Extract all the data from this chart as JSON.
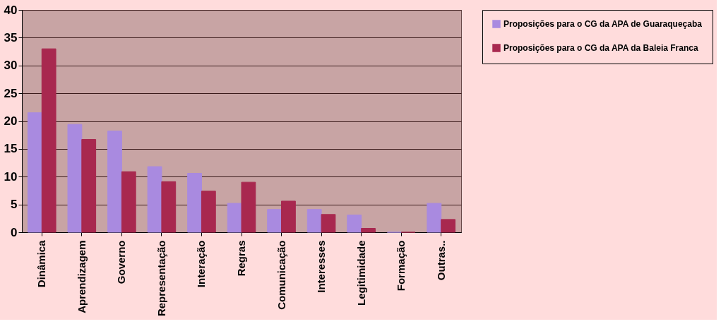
{
  "chart_data": {
    "type": "bar",
    "categories": [
      "Dinâmica",
      "Aprendizagem",
      "Governo",
      "Representação",
      "Interação",
      "Regras",
      "Comunicação",
      "Interesses",
      "Legitimidade",
      "Formação",
      "Outras.."
    ],
    "series": [
      {
        "name": "Proposições para o CG da APA de Guaraqueçaba",
        "color": "#a98ae0",
        "values": [
          21.5,
          19.4,
          18.2,
          11.8,
          10.6,
          5.2,
          4.1,
          4.1,
          3.1,
          0,
          5.2
        ]
      },
      {
        "name": "Proposições para o CG da APA da Baleia Franca",
        "color": "#a8284f",
        "values": [
          33,
          16.7,
          10.9,
          9.1,
          7.4,
          9,
          5.6,
          3.2,
          0.7,
          0,
          2.3
        ]
      }
    ],
    "ylim": [
      0,
      40
    ],
    "yticks": [
      0,
      5,
      10,
      15,
      20,
      25,
      30,
      35,
      40
    ],
    "grid": "y",
    "legend": "right"
  }
}
